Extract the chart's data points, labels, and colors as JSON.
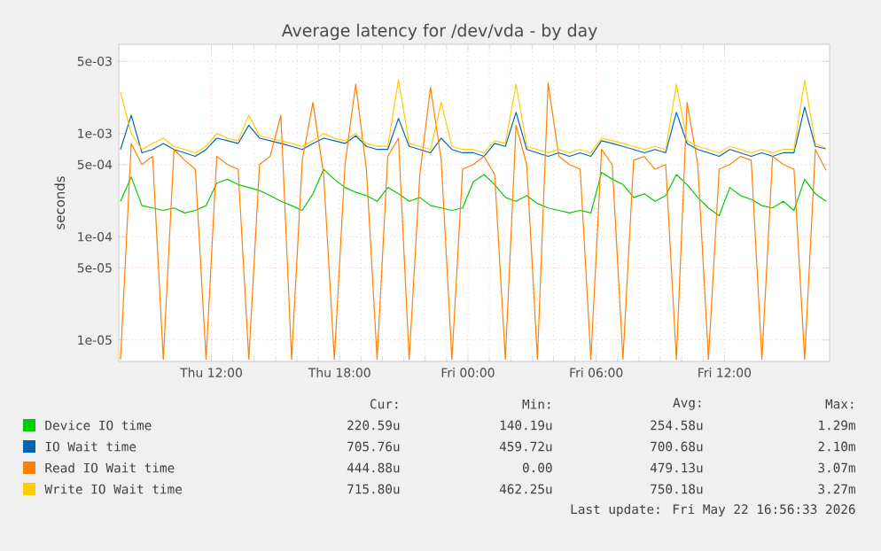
{
  "chart_data": {
    "type": "line",
    "title": "Average latency for /dev/vda - by day",
    "ylabel": "seconds",
    "log": true,
    "grid": true,
    "legend": "bottom",
    "xlim": [
      "2026-05-21T07:40",
      "2026-05-22T16:55"
    ],
    "xticks": [
      {
        "value": "2026-05-21T12:00",
        "label": "Thu 12:00"
      },
      {
        "value": "2026-05-21T18:00",
        "label": "Thu 18:00"
      },
      {
        "value": "2026-05-22T00:00",
        "label": "Fri 00:00"
      },
      {
        "value": "2026-05-22T06:00",
        "label": "Fri 06:00"
      },
      {
        "value": "2026-05-22T12:00",
        "label": "Fri 12:00"
      }
    ],
    "ylim": [
      6.2e-06,
      0.0073
    ],
    "yticks": [
      {
        "value": 1e-05,
        "label": "1e-05"
      },
      {
        "value": 5e-05,
        "label": "5e-05"
      },
      {
        "value": 0.0001,
        "label": "1e-04"
      },
      {
        "value": 0.0005,
        "label": "5e-04"
      },
      {
        "value": 0.001,
        "label": "1e-03"
      },
      {
        "value": 0.005,
        "label": "5e-03"
      }
    ],
    "x": [
      "2026-05-21T07:45",
      "2026-05-21T08:15",
      "2026-05-21T08:45",
      "2026-05-21T09:15",
      "2026-05-21T09:45",
      "2026-05-21T10:15",
      "2026-05-21T10:45",
      "2026-05-21T11:15",
      "2026-05-21T11:45",
      "2026-05-21T12:15",
      "2026-05-21T12:45",
      "2026-05-21T13:15",
      "2026-05-21T13:45",
      "2026-05-21T14:15",
      "2026-05-21T14:45",
      "2026-05-21T15:15",
      "2026-05-21T15:45",
      "2026-05-21T16:15",
      "2026-05-21T16:45",
      "2026-05-21T17:15",
      "2026-05-21T17:45",
      "2026-05-21T18:15",
      "2026-05-21T18:45",
      "2026-05-21T19:15",
      "2026-05-21T19:45",
      "2026-05-21T20:15",
      "2026-05-21T20:45",
      "2026-05-21T21:15",
      "2026-05-21T21:45",
      "2026-05-21T22:15",
      "2026-05-21T22:45",
      "2026-05-21T23:15",
      "2026-05-21T23:45",
      "2026-05-22T00:15",
      "2026-05-22T00:45",
      "2026-05-22T01:15",
      "2026-05-22T01:45",
      "2026-05-22T02:15",
      "2026-05-22T02:45",
      "2026-05-22T03:15",
      "2026-05-22T03:45",
      "2026-05-22T04:15",
      "2026-05-22T04:45",
      "2026-05-22T05:15",
      "2026-05-22T05:45",
      "2026-05-22T06:15",
      "2026-05-22T06:45",
      "2026-05-22T07:15",
      "2026-05-22T07:45",
      "2026-05-22T08:15",
      "2026-05-22T08:45",
      "2026-05-22T09:15",
      "2026-05-22T09:45",
      "2026-05-22T10:15",
      "2026-05-22T10:45",
      "2026-05-22T11:15",
      "2026-05-22T11:45",
      "2026-05-22T12:15",
      "2026-05-22T12:45",
      "2026-05-22T13:15",
      "2026-05-22T13:45",
      "2026-05-22T14:15",
      "2026-05-22T14:45",
      "2026-05-22T15:15",
      "2026-05-22T15:45",
      "2026-05-22T16:15",
      "2026-05-22T16:45"
    ],
    "series": [
      {
        "name": "Device IO time",
        "color": "#00cc00",
        "values": [
          0.00022,
          0.00038,
          0.0002,
          0.00019,
          0.00018,
          0.00019,
          0.00017,
          0.00018,
          0.0002,
          0.00033,
          0.00036,
          0.00032,
          0.0003,
          0.00028,
          0.00025,
          0.00022,
          0.0002,
          0.00018,
          0.00026,
          0.00045,
          0.00036,
          0.0003,
          0.00027,
          0.00025,
          0.00022,
          0.0003,
          0.00026,
          0.00022,
          0.00024,
          0.0002,
          0.00019,
          0.00018,
          0.00019,
          0.00034,
          0.0004,
          0.00032,
          0.00024,
          0.00022,
          0.00025,
          0.00021,
          0.00019,
          0.00018,
          0.00017,
          0.00018,
          0.00017,
          0.00042,
          0.00036,
          0.00032,
          0.00024,
          0.00026,
          0.00022,
          0.00025,
          0.0004,
          0.00032,
          0.00024,
          0.00019,
          0.00016,
          0.0003,
          0.00025,
          0.00023,
          0.0002,
          0.00019,
          0.00022,
          0.00018,
          0.00036,
          0.00026,
          0.00022
        ]
      },
      {
        "name": "IO Wait time",
        "color": "#0066b3",
        "values": [
          0.0007,
          0.0015,
          0.00065,
          0.0007,
          0.0008,
          0.0007,
          0.00065,
          0.0006,
          0.0007,
          0.0009,
          0.00085,
          0.0008,
          0.0012,
          0.0009,
          0.00085,
          0.0008,
          0.00075,
          0.0007,
          0.0008,
          0.0009,
          0.00085,
          0.0008,
          0.00095,
          0.00075,
          0.0007,
          0.0007,
          0.0014,
          0.00075,
          0.0007,
          0.00065,
          0.0009,
          0.0007,
          0.00065,
          0.00065,
          0.0006,
          0.0008,
          0.00075,
          0.0016,
          0.0007,
          0.00065,
          0.0006,
          0.00065,
          0.0006,
          0.00065,
          0.0006,
          0.00085,
          0.0008,
          0.00075,
          0.0007,
          0.00065,
          0.0007,
          0.00065,
          0.0016,
          0.0008,
          0.0007,
          0.00065,
          0.0006,
          0.0007,
          0.00065,
          0.0006,
          0.00065,
          0.0006,
          0.00065,
          0.00065,
          0.0018,
          0.00075,
          0.00071
        ]
      },
      {
        "name": "Read IO Wait time",
        "color": "#ff8000",
        "values": [
          6.5e-06,
          0.0008,
          0.0005,
          0.0006,
          6.5e-06,
          0.0007,
          0.00055,
          0.00045,
          6.5e-06,
          0.0006,
          0.0005,
          0.00045,
          6.5e-06,
          0.0005,
          0.0006,
          0.0015,
          6.5e-06,
          0.00055,
          0.002,
          0.0004,
          6.5e-06,
          0.0005,
          0.003,
          0.00045,
          6.5e-06,
          0.0006,
          0.0009,
          6.5e-06,
          0.0004,
          0.0028,
          0.00055,
          6.5e-06,
          0.00045,
          0.0005,
          0.0006,
          0.0004,
          6.5e-06,
          0.0012,
          0.0005,
          6.5e-06,
          0.00307,
          0.0006,
          0.0005,
          0.00045,
          6.5e-06,
          0.0007,
          0.0005,
          6.5e-06,
          0.00055,
          0.0006,
          0.00045,
          0.0005,
          6.5e-06,
          0.002,
          0.0005,
          6.5e-06,
          0.00045,
          0.0005,
          0.0006,
          0.00055,
          6.5e-06,
          0.0006,
          0.0005,
          0.00045,
          6.5e-06,
          0.0007,
          0.00044
        ]
      },
      {
        "name": "Write IO Wait time",
        "color": "#ffcc00",
        "values": [
          0.0025,
          0.001,
          0.0007,
          0.0008,
          0.0009,
          0.00075,
          0.0007,
          0.00065,
          0.00075,
          0.001,
          0.0009,
          0.00085,
          0.0015,
          0.00095,
          0.0009,
          0.00085,
          0.0008,
          0.00075,
          0.00085,
          0.001,
          0.0009,
          0.00085,
          0.001,
          0.0008,
          0.00075,
          0.00075,
          0.0033,
          0.0008,
          0.00075,
          0.0007,
          0.002,
          0.00075,
          0.0007,
          0.0007,
          0.00065,
          0.00085,
          0.0008,
          0.003,
          0.00075,
          0.0007,
          0.00065,
          0.0007,
          0.00065,
          0.0007,
          0.00065,
          0.0009,
          0.00085,
          0.0008,
          0.00075,
          0.0007,
          0.00075,
          0.0007,
          0.003,
          0.00085,
          0.00075,
          0.0007,
          0.00065,
          0.00075,
          0.0007,
          0.00065,
          0.0007,
          0.00065,
          0.0007,
          0.0007,
          0.00327,
          0.0008,
          0.00072
        ]
      }
    ],
    "annotations": [
      "Cur:",
      "Min:",
      "Avg:",
      "Max:",
      "220.59u",
      "140.19u",
      "254.58u",
      "1.29m",
      "705.76u",
      "459.72u",
      "700.68u",
      "2.10m",
      "444.88u",
      "0.00",
      "479.13u",
      "3.07m",
      "715.80u",
      "462.25u",
      "750.18u",
      "3.27m",
      "Last update: Fri May 22 16:56:33 2026"
    ]
  }
}
